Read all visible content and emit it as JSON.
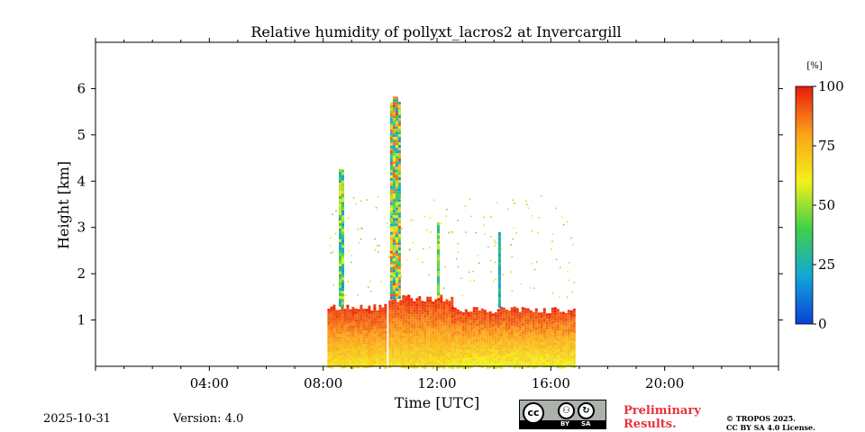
{
  "chart_data": {
    "type": "heatmap",
    "title": "Relative humidity of pollyxt_lacros2 at Invercargill",
    "xlabel": "Time [UTC]",
    "ylabel": "Height [km]",
    "x_unit": "hours UTC",
    "xlim": [
      0,
      24
    ],
    "ylim": [
      0,
      7
    ],
    "xticks": [
      {
        "value": 4,
        "label": "04:00"
      },
      {
        "value": 8,
        "label": "08:00"
      },
      {
        "value": 12,
        "label": "12:00"
      },
      {
        "value": 16,
        "label": "16:00"
      },
      {
        "value": 20,
        "label": "20:00"
      }
    ],
    "yticks": [
      {
        "value": 1,
        "label": "1"
      },
      {
        "value": 2,
        "label": "2"
      },
      {
        "value": 3,
        "label": "3"
      },
      {
        "value": 4,
        "label": "4"
      },
      {
        "value": 5,
        "label": "5"
      },
      {
        "value": 6,
        "label": "6"
      }
    ],
    "colorbar": {
      "unit": "[%]",
      "range": [
        0,
        100
      ],
      "ticks": [
        {
          "value": 0,
          "label": "0"
        },
        {
          "value": 25,
          "label": "25"
        },
        {
          "value": 50,
          "label": "50"
        },
        {
          "value": 75,
          "label": "75"
        },
        {
          "value": 100,
          "label": "100"
        }
      ],
      "colors": [
        "#0a3fd8",
        "#12a7d6",
        "#3fd04a",
        "#f2f21a",
        "#fca21a",
        "#e81a0c"
      ]
    },
    "regions": [
      {
        "t_start": 8.15,
        "t_end": 10.15,
        "h_base": 0.0,
        "h_top": 1.3,
        "rh_min": 60,
        "rh_max": 100
      },
      {
        "t_start": 10.3,
        "t_end": 12.5,
        "h_base": 0.0,
        "h_top": 1.5,
        "rh_min": 60,
        "rh_max": 100
      },
      {
        "t_start": 12.5,
        "t_end": 16.85,
        "h_base": 0.0,
        "h_top": 1.25,
        "rh_min": 55,
        "rh_max": 100
      },
      {
        "t_start": 10.35,
        "t_end": 10.7,
        "h_base": 1.5,
        "h_top": 5.8,
        "rh_min": 15,
        "rh_max": 95
      },
      {
        "t_start": 8.55,
        "t_end": 8.65,
        "h_base": 1.3,
        "h_top": 4.3,
        "rh_min": 15,
        "rh_max": 70
      },
      {
        "t_start": 12.0,
        "t_end": 12.05,
        "h_base": 1.5,
        "h_top": 3.2,
        "rh_min": 25,
        "rh_max": 60
      },
      {
        "t_start": 14.15,
        "t_end": 14.2,
        "h_base": 1.3,
        "h_top": 3.0,
        "rh_min": 15,
        "rh_max": 40
      }
    ]
  },
  "footer": {
    "date": "2025-10-31",
    "version": "Version: 4.0",
    "preliminary_line1": "Preliminary",
    "preliminary_line2": "Results.",
    "copyright_line1": "© TROPOS 2025.",
    "copyright_line2": "CC BY SA 4.0 License."
  },
  "license_badge": {
    "cc": "cc",
    "by": "BY",
    "sa": "SA"
  }
}
